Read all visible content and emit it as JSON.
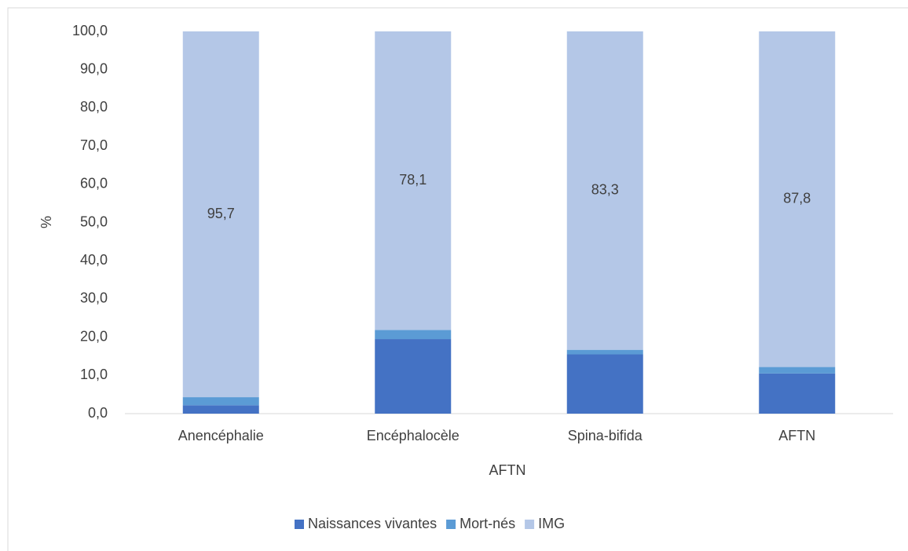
{
  "chart_data": {
    "type": "stacked_bar",
    "xlabel": "AFTN",
    "ylabel": "%",
    "categories": [
      "Anencéphalie",
      "Encéphalocèle",
      "Spina-bifida",
      "AFTN"
    ],
    "series": [
      {
        "name": "Naissances vivantes",
        "color": "#4472c4",
        "values": [
          2.2,
          19.5,
          15.5,
          10.5
        ]
      },
      {
        "name": "Mort-nés",
        "color": "#5b9bd5",
        "values": [
          2.1,
          2.4,
          1.2,
          1.7
        ]
      },
      {
        "name": "IMG",
        "color": "#b4c7e7",
        "values": [
          95.7,
          78.1,
          83.3,
          87.8
        ],
        "value_labels": [
          "95,7",
          "78,1",
          "83,3",
          "87,8"
        ]
      }
    ],
    "ylim": [
      0,
      100
    ],
    "yticks": [
      {
        "value": 0,
        "label": "0,0"
      },
      {
        "value": 10,
        "label": "10,0"
      },
      {
        "value": 20,
        "label": "20,0"
      },
      {
        "value": 30,
        "label": "30,0"
      },
      {
        "value": 40,
        "label": "40,0"
      },
      {
        "value": 50,
        "label": "50,0"
      },
      {
        "value": 60,
        "label": "60,0"
      },
      {
        "value": 70,
        "label": "70,0"
      },
      {
        "value": 80,
        "label": "80,0"
      },
      {
        "value": 90,
        "label": "90,0"
      },
      {
        "value": 100,
        "label": "100,0"
      }
    ],
    "legend": "bottom"
  }
}
